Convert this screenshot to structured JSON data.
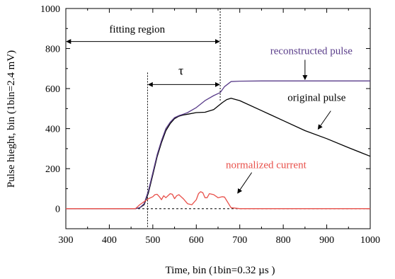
{
  "chart_data": {
    "type": "line",
    "title": "",
    "xlabel": "Time, bin (1bin=0.32 µs )",
    "ylabel": "Pulse hieght, bin (1bin=2.4 mV)",
    "xlim": [
      300,
      1000
    ],
    "ylim": [
      -100,
      1000
    ],
    "xticks": [
      300,
      400,
      500,
      600,
      700,
      800,
      900,
      1000
    ],
    "yticks": [
      0,
      200,
      400,
      600,
      800,
      1000
    ],
    "x_tick_labels": [
      "300",
      "400",
      "500",
      "600",
      "700",
      "800",
      "900",
      "1000"
    ],
    "y_tick_labels": [
      "0",
      "200",
      "400",
      "600",
      "800",
      "1000"
    ],
    "grid": false,
    "legend": "none",
    "series": [
      {
        "color": "#000000",
        "x": [
          300,
          400,
          460,
          470,
          480,
          490,
          500,
          510,
          520,
          530,
          540,
          550,
          560,
          570,
          580,
          600,
          620,
          640,
          660,
          670,
          680,
          700,
          750,
          800,
          850,
          900,
          950,
          1000
        ],
        "y": [
          0,
          0,
          0,
          5,
          20,
          80,
          170,
          260,
          330,
          390,
          425,
          450,
          462,
          468,
          472,
          480,
          482,
          495,
          530,
          545,
          552,
          540,
          490,
          440,
          390,
          350,
          305,
          262
        ]
      },
      {
        "color": "#5a3d8a",
        "x": [
          300,
          400,
          460,
          470,
          480,
          490,
          500,
          510,
          520,
          530,
          540,
          550,
          560,
          570,
          580,
          600,
          620,
          640,
          655,
          665,
          680,
          700,
          750,
          800,
          850,
          900,
          950,
          1000
        ],
        "y": [
          0,
          0,
          0,
          5,
          25,
          90,
          180,
          270,
          340,
          400,
          432,
          455,
          465,
          472,
          480,
          505,
          540,
          565,
          580,
          610,
          635,
          637,
          638,
          638,
          638,
          638,
          638,
          638
        ]
      },
      {
        "color": "#e8504a",
        "x": [
          300,
          400,
          460,
          470,
          480,
          490,
          500,
          505,
          510,
          515,
          520,
          525,
          530,
          540,
          545,
          550,
          555,
          560,
          570,
          580,
          590,
          600,
          605,
          610,
          615,
          620,
          625,
          630,
          640,
          650,
          660,
          665,
          670,
          680,
          700,
          750,
          800,
          850,
          900,
          950,
          1000
        ],
        "y": [
          0,
          0,
          0,
          20,
          35,
          50,
          60,
          70,
          72,
          60,
          45,
          65,
          55,
          75,
          72,
          50,
          65,
          70,
          50,
          25,
          20,
          45,
          75,
          85,
          80,
          55,
          55,
          75,
          70,
          55,
          60,
          58,
          40,
          5,
          0,
          0,
          0,
          0,
          0,
          0,
          0
        ]
      }
    ],
    "reference_lines": {
      "zero_dashed_y": 0,
      "fit_start_x": 488,
      "fit_end_x": 655,
      "fitting_region_arrow_y": 835,
      "fitting_region_x": [
        300,
        655
      ],
      "tau_arrow_y": 620,
      "tau_x": [
        488,
        655
      ]
    },
    "annotations": [
      {
        "key": "fitting_region",
        "text": "fitting region",
        "x": 400,
        "y": 880
      },
      {
        "key": "tau",
        "text": "τ",
        "x": 565,
        "y": 670
      },
      {
        "key": "reconstructed",
        "text": "reconstructed pulse",
        "x": 770,
        "y": 772,
        "arrow_to": [
          850,
          645
        ]
      },
      {
        "key": "original",
        "text": "original pulse",
        "x": 810,
        "y": 538,
        "arrow_to": [
          880,
          397
        ]
      },
      {
        "key": "normalized",
        "text": "normalized current",
        "x": 668,
        "y": 202,
        "arrow_to": [
          695,
          77
        ]
      }
    ]
  }
}
